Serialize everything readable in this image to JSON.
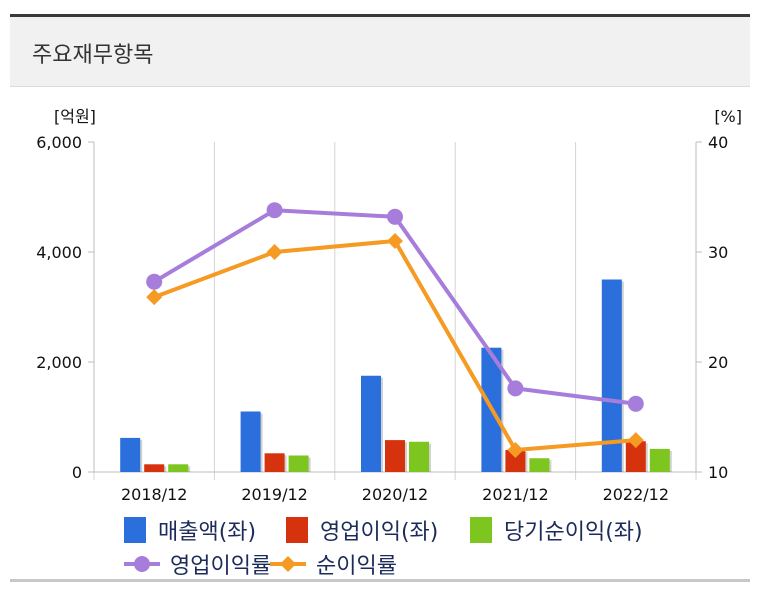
{
  "header": {
    "title": "주요재무항목"
  },
  "chart_data": {
    "type": "bar",
    "categories": [
      "2018/12",
      "2019/12",
      "2020/12",
      "2021/12",
      "2022/12"
    ],
    "left_axis": {
      "unit": "[억원]",
      "min": 0,
      "max": 6000,
      "ticks": [
        0,
        2000,
        4000,
        6000
      ],
      "tick_labels": [
        "0",
        "2,000",
        "4,000",
        "6,000"
      ]
    },
    "right_axis": {
      "unit": "[%]",
      "min": 10,
      "max": 40,
      "ticks": [
        10,
        20,
        30,
        40
      ],
      "tick_labels": [
        "10",
        "20",
        "30",
        "40"
      ]
    },
    "bar_series": [
      {
        "name": "매출액(좌)",
        "color": "#2a6fdb",
        "values": [
          620,
          1100,
          1750,
          2260,
          3500
        ]
      },
      {
        "name": "영업이익(좌)",
        "color": "#d7320e",
        "values": [
          140,
          340,
          580,
          400,
          560
        ]
      },
      {
        "name": "당기순이익(좌)",
        "color": "#7dc51f",
        "values": [
          140,
          300,
          550,
          250,
          420
        ]
      }
    ],
    "line_series": [
      {
        "name": "영업이익률",
        "color": "#a77ddb",
        "marker": "circle",
        "values": [
          27.3,
          33.8,
          33.2,
          17.6,
          16.2
        ]
      },
      {
        "name": "순이익률",
        "color": "#f59a23",
        "marker": "diamond",
        "values": [
          25.9,
          30.0,
          31.0,
          12.0,
          12.9
        ]
      }
    ],
    "grid": "vertical",
    "legend": "bottom"
  }
}
